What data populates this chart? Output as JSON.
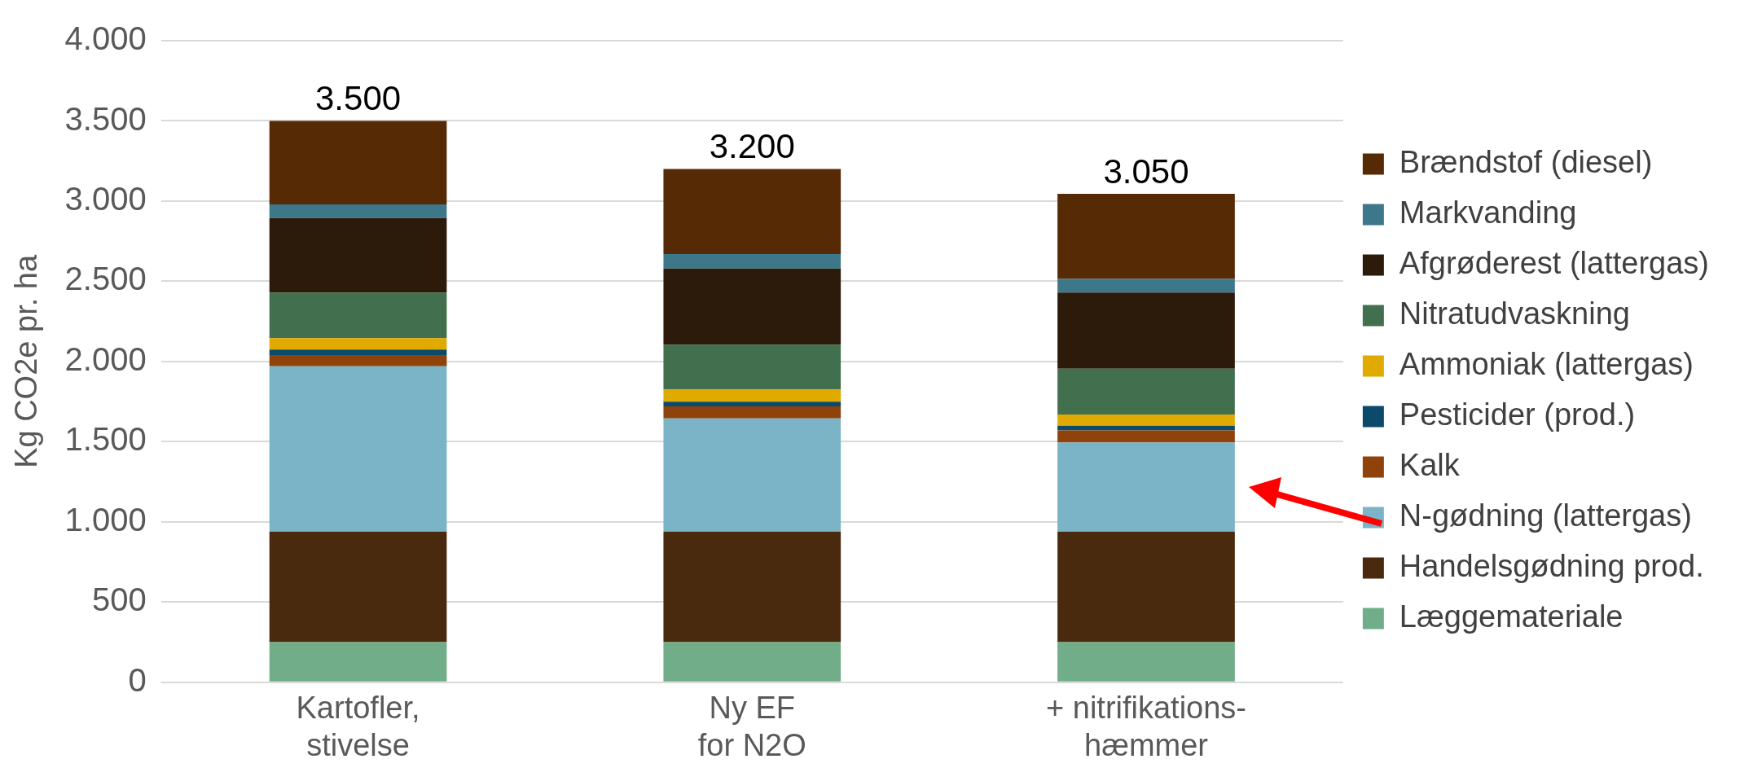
{
  "chart_data": {
    "type": "bar",
    "stacked": true,
    "ylabel": "Kg CO2e pr. ha",
    "categories": [
      "Kartofler,\nstivelse",
      "Ny EF\nfor N2O",
      "+ nitrifikations-\nhæmmer"
    ],
    "series": [
      {
        "name": "Læggemateriale",
        "color": "#70ad88",
        "values": [
          250,
          250,
          250
        ]
      },
      {
        "name": "Handelsgødning prod.",
        "color": "#4a2a0e",
        "values": [
          690,
          690,
          690
        ]
      },
      {
        "name": "N-gødning (lattergas)",
        "color": "#7ab4c6",
        "values": [
          1030,
          705,
          555
        ]
      },
      {
        "name": "Kalk",
        "color": "#8f430b",
        "values": [
          70,
          75,
          75
        ]
      },
      {
        "name": "Pesticider (prod.)",
        "color": "#0b4a6a",
        "values": [
          35,
          30,
          30
        ]
      },
      {
        "name": "Ammoniak (lattergas)",
        "color": "#e0aa00",
        "values": [
          70,
          75,
          70
        ]
      },
      {
        "name": "Nitratudvaskning",
        "color": "#42704f",
        "values": [
          285,
          280,
          285
        ]
      },
      {
        "name": "Afgrøderest (lattergas)",
        "color": "#2c1a0a",
        "values": [
          465,
          475,
          475
        ]
      },
      {
        "name": "Markvanding",
        "color": "#3d778a",
        "values": [
          85,
          90,
          85
        ]
      },
      {
        "name": "Brændstof (diesel)",
        "color": "#552a05",
        "values": [
          520,
          530,
          530
        ]
      }
    ],
    "totals": [
      "3.500",
      "3.200",
      "3.050"
    ],
    "ylim": [
      0,
      4000
    ],
    "yticks": [
      0,
      500,
      {
        "value": 1000,
        "label": "1.000"
      },
      {
        "value": 1500,
        "label": "1.500"
      },
      {
        "value": 2000,
        "label": "2.000"
      },
      {
        "value": 2500,
        "label": "2.500"
      },
      {
        "value": 3000,
        "label": "3.000"
      },
      {
        "value": 3500,
        "label": "3.500"
      },
      {
        "value": 4000,
        "label": "4.000"
      }
    ],
    "grid": "y",
    "legend": "right"
  }
}
